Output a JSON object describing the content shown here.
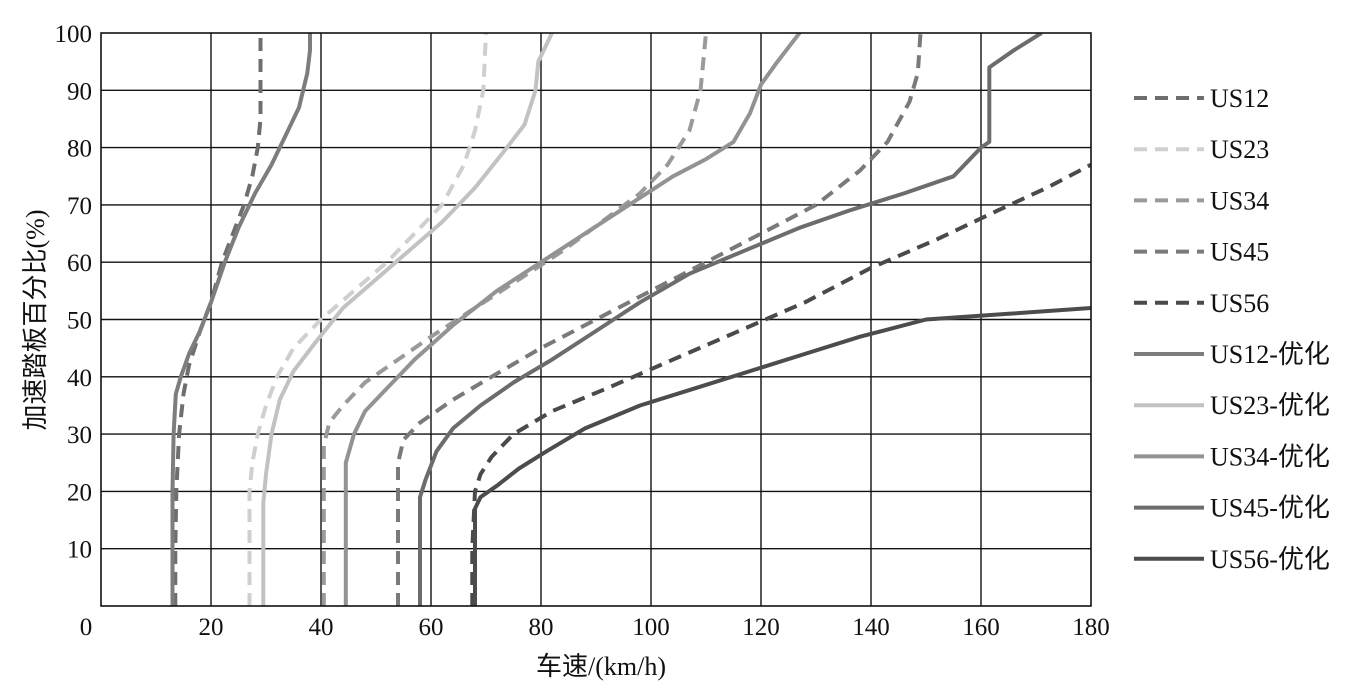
{
  "chart_data": {
    "type": "line",
    "title": "",
    "xlabel": "车速/(km/h)",
    "ylabel": "加速踏板百分比(%)",
    "xlim": [
      0,
      180
    ],
    "ylim": [
      0,
      100
    ],
    "x_ticks": [
      0,
      20,
      40,
      60,
      80,
      100,
      120,
      140,
      160,
      180
    ],
    "y_ticks": [
      10,
      20,
      30,
      40,
      50,
      60,
      70,
      80,
      90,
      100
    ],
    "grid": true,
    "legend_position": "right",
    "series": [
      {
        "name": "US12",
        "dashed": true,
        "color": "#6e6e6e",
        "points": [
          [
            13.5,
            0
          ],
          [
            13.5,
            10
          ],
          [
            13.7,
            20
          ],
          [
            14.2,
            30
          ],
          [
            15,
            37
          ],
          [
            16,
            42
          ],
          [
            18,
            48
          ],
          [
            20,
            53
          ],
          [
            22,
            60
          ],
          [
            24,
            65
          ],
          [
            26,
            70
          ],
          [
            27.5,
            75
          ],
          [
            28.5,
            80
          ],
          [
            29,
            85
          ],
          [
            29,
            90
          ],
          [
            29,
            95
          ],
          [
            29,
            100
          ]
        ]
      },
      {
        "name": "US23",
        "dashed": true,
        "color": "#cfcfcf",
        "points": [
          [
            27,
            0
          ],
          [
            27,
            10
          ],
          [
            27,
            20
          ],
          [
            27.5,
            25
          ],
          [
            28.5,
            30
          ],
          [
            30,
            35
          ],
          [
            32,
            40
          ],
          [
            35,
            45
          ],
          [
            40,
            50
          ],
          [
            46,
            55
          ],
          [
            52,
            60
          ],
          [
            57,
            65
          ],
          [
            62,
            70
          ],
          [
            66,
            77
          ],
          [
            68,
            83
          ],
          [
            69.5,
            90
          ],
          [
            70,
            100
          ]
        ]
      },
      {
        "name": "US34",
        "dashed": true,
        "color": "#9a9a9a",
        "points": [
          [
            40.5,
            0
          ],
          [
            40.5,
            10
          ],
          [
            40.5,
            20
          ],
          [
            40.5,
            28
          ],
          [
            41.5,
            32
          ],
          [
            44,
            35
          ],
          [
            48,
            39
          ],
          [
            54,
            43
          ],
          [
            60,
            47
          ],
          [
            68,
            52
          ],
          [
            76,
            57
          ],
          [
            84,
            62
          ],
          [
            91,
            67
          ],
          [
            98,
            72
          ],
          [
            103,
            77
          ],
          [
            107,
            83
          ],
          [
            109,
            90
          ],
          [
            110,
            100
          ]
        ]
      },
      {
        "name": "US45",
        "dashed": true,
        "color": "#7a7a7a",
        "points": [
          [
            54,
            0
          ],
          [
            54,
            10
          ],
          [
            54,
            20
          ],
          [
            54,
            25
          ],
          [
            55,
            29
          ],
          [
            58,
            32
          ],
          [
            64,
            36
          ],
          [
            71,
            40
          ],
          [
            80,
            45
          ],
          [
            90,
            50
          ],
          [
            100,
            55
          ],
          [
            110,
            60
          ],
          [
            120,
            65
          ],
          [
            130,
            70
          ],
          [
            138,
            76
          ],
          [
            143,
            81
          ],
          [
            147,
            88
          ],
          [
            148.5,
            93
          ],
          [
            149,
            100
          ]
        ]
      },
      {
        "name": "US56",
        "dashed": true,
        "color": "#4a4a4a",
        "points": [
          [
            67.5,
            0
          ],
          [
            67.5,
            10
          ],
          [
            68,
            20
          ],
          [
            69,
            23
          ],
          [
            71,
            26
          ],
          [
            75,
            30
          ],
          [
            82,
            34
          ],
          [
            92,
            38
          ],
          [
            104,
            43
          ],
          [
            116,
            48
          ],
          [
            128,
            53
          ],
          [
            140,
            59
          ],
          [
            152,
            64
          ],
          [
            163,
            69
          ],
          [
            172,
            73
          ],
          [
            180,
            77
          ]
        ]
      },
      {
        "name": "US12-优化",
        "dashed": false,
        "color": "#7d7d7d",
        "points": [
          [
            13,
            0
          ],
          [
            13,
            10
          ],
          [
            13,
            20
          ],
          [
            13.2,
            30
          ],
          [
            13.6,
            37
          ],
          [
            14.5,
            40
          ],
          [
            16,
            44
          ],
          [
            18,
            48
          ],
          [
            20,
            53
          ],
          [
            22.5,
            60
          ],
          [
            25,
            66
          ],
          [
            28,
            72
          ],
          [
            31,
            77
          ],
          [
            33.5,
            82
          ],
          [
            36,
            87
          ],
          [
            37.5,
            93
          ],
          [
            38,
            97
          ],
          [
            38,
            100
          ]
        ]
      },
      {
        "name": "US23-优化",
        "dashed": false,
        "color": "#c2c2c2",
        "points": [
          [
            29.5,
            0
          ],
          [
            29.5,
            10
          ],
          [
            29.5,
            18
          ],
          [
            30,
            23
          ],
          [
            31,
            30
          ],
          [
            32.5,
            36
          ],
          [
            35,
            41
          ],
          [
            39,
            46
          ],
          [
            44,
            52
          ],
          [
            50,
            57
          ],
          [
            56,
            62
          ],
          [
            62,
            67
          ],
          [
            68,
            73
          ],
          [
            73,
            79
          ],
          [
            77,
            84
          ],
          [
            79,
            90
          ],
          [
            79.5,
            95
          ],
          [
            82,
            100
          ]
        ]
      },
      {
        "name": "US34-优化",
        "dashed": false,
        "color": "#939393",
        "points": [
          [
            44.5,
            0
          ],
          [
            44.5,
            10
          ],
          [
            44.5,
            20
          ],
          [
            44.5,
            25
          ],
          [
            46,
            30
          ],
          [
            48,
            34
          ],
          [
            52,
            38
          ],
          [
            57,
            43
          ],
          [
            64,
            49
          ],
          [
            72,
            55
          ],
          [
            80,
            60
          ],
          [
            88,
            65
          ],
          [
            96,
            70
          ],
          [
            104,
            75
          ],
          [
            110,
            78
          ],
          [
            115,
            81
          ],
          [
            118,
            86
          ],
          [
            120,
            91
          ],
          [
            123,
            95
          ],
          [
            127,
            100
          ]
        ]
      },
      {
        "name": "US45-优化",
        "dashed": false,
        "color": "#6c6c6c",
        "points": [
          [
            58,
            0
          ],
          [
            58,
            10
          ],
          [
            58,
            19
          ],
          [
            59,
            22
          ],
          [
            61,
            27
          ],
          [
            64,
            31
          ],
          [
            69,
            35
          ],
          [
            75,
            39
          ],
          [
            82,
            43
          ],
          [
            90,
            48
          ],
          [
            98,
            53
          ],
          [
            107,
            58
          ],
          [
            117,
            62
          ],
          [
            127,
            66
          ],
          [
            136,
            69
          ],
          [
            146,
            72
          ],
          [
            155,
            75
          ],
          [
            160,
            80
          ],
          [
            161.5,
            81
          ],
          [
            161.5,
            90
          ],
          [
            161.5,
            94
          ],
          [
            166,
            97
          ],
          [
            171,
            100
          ]
        ]
      },
      {
        "name": "US56-优化",
        "dashed": false,
        "color": "#4c4c4c",
        "points": [
          [
            68,
            0
          ],
          [
            68,
            10
          ],
          [
            68,
            17
          ],
          [
            69,
            19
          ],
          [
            72,
            21
          ],
          [
            76,
            24
          ],
          [
            81,
            27
          ],
          [
            88,
            31
          ],
          [
            98,
            35
          ],
          [
            108,
            38
          ],
          [
            118,
            41
          ],
          [
            128,
            44
          ],
          [
            138,
            47
          ],
          [
            150,
            50
          ],
          [
            165,
            51
          ],
          [
            180,
            52
          ]
        ]
      }
    ]
  }
}
